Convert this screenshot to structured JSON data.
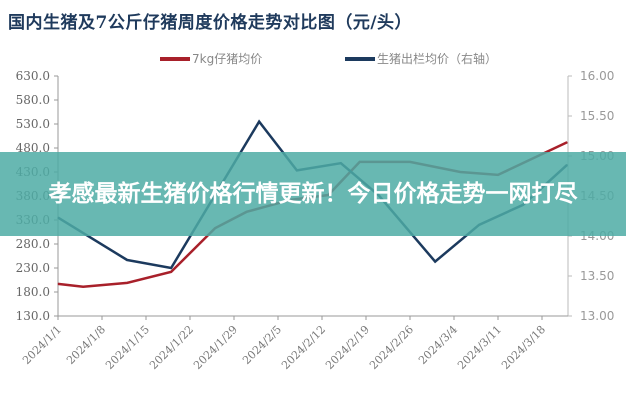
{
  "chart_data": {
    "type": "line",
    "title": "国内生猪及7公斤仔猪周度价格走势对比图（元/头）",
    "x_tick_labels": [
      "2024/1/1",
      "2024/1/8",
      "2024/1/15",
      "2024/1/22",
      "2024/1/29",
      "2024/2/5",
      "2024/2/12",
      "2024/2/19",
      "2024/2/26",
      "2024/3/4",
      "2024/3/11",
      "2024/3/18"
    ],
    "y_left": {
      "range": [
        130,
        630
      ],
      "ticks": [
        "130.0",
        "180.0",
        "230.0",
        "280.0",
        "330.0",
        "380.0",
        "430.0",
        "480.0",
        "530.0",
        "580.0",
        "630.0"
      ]
    },
    "y_right": {
      "range": [
        13.0,
        16.0
      ],
      "ticks": [
        "13.00",
        "13.50",
        "14.00",
        "14.50",
        "15.00",
        "15.50",
        "16.00"
      ]
    },
    "legend_position": "top",
    "grid": false,
    "series": [
      {
        "name": "7kg仔猪均价",
        "axis": "left",
        "color": "#a8202a",
        "points": [
          [
            "2024/1/1",
            197
          ],
          [
            "2024/1/5",
            191
          ],
          [
            "2024/1/12",
            199
          ],
          [
            "2024/1/19",
            222
          ],
          [
            "2024/1/26",
            313
          ],
          [
            "2024/1/31",
            347
          ],
          [
            "2024/2/7",
            372
          ],
          [
            "2024/2/13",
            382
          ],
          [
            "2024/2/18",
            451
          ],
          [
            "2024/2/26",
            451
          ],
          [
            "2024/3/5",
            430
          ],
          [
            "2024/3/11",
            424
          ],
          [
            "2024/3/22",
            492
          ]
        ]
      },
      {
        "name": "生猪出栏均价（右轴）",
        "axis": "right",
        "color": "#1c3a5e",
        "points": [
          [
            "2024/1/1",
            14.23
          ],
          [
            "2024/1/12",
            13.7
          ],
          [
            "2024/1/19",
            13.6
          ],
          [
            "2024/2/2",
            15.43
          ],
          [
            "2024/2/8",
            14.82
          ],
          [
            "2024/2/15",
            14.91
          ],
          [
            "2024/2/21",
            14.51
          ],
          [
            "2024/3/1",
            13.68
          ],
          [
            "2024/3/8",
            14.14
          ],
          [
            "2024/3/15",
            14.39
          ],
          [
            "2024/3/22",
            14.89
          ]
        ]
      }
    ]
  },
  "banner": {
    "text": "孝感最新生猪价格行情更新！今日价格走势一网打尽"
  }
}
